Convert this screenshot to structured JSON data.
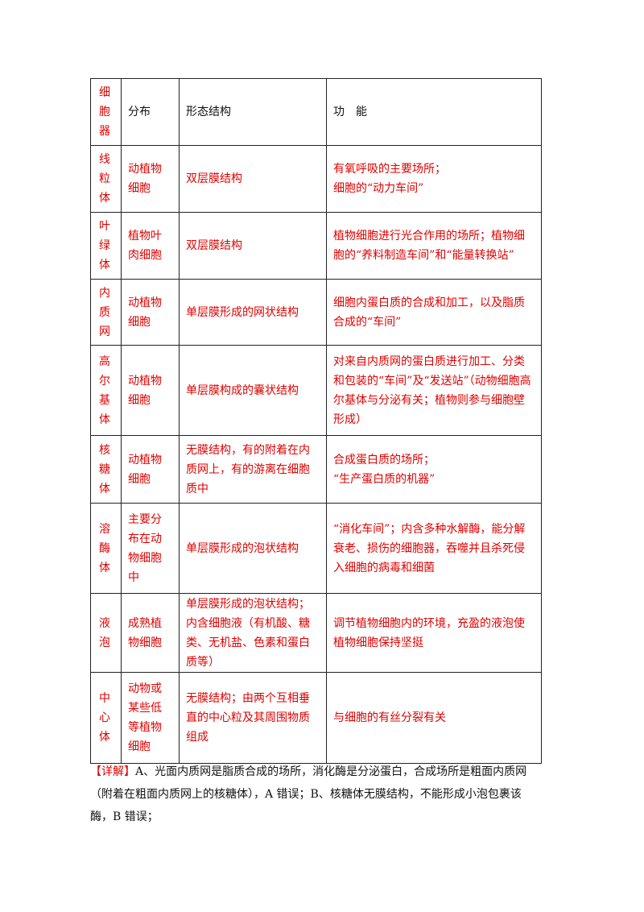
{
  "table": {
    "rows": [
      [
        [
          "细",
          "胞",
          "器"
        ],
        [
          "分布"
        ],
        [
          "形态结构"
        ],
        [
          "功　能"
        ]
      ],
      [
        [
          "线",
          "粒",
          "体"
        ],
        [
          "动植物",
          "细胞"
        ],
        [
          "双层膜结构"
        ],
        [
          "有氧呼吸的主要场所；",
          "细胞的“动力车间”"
        ]
      ],
      [
        [
          "叶",
          "绿",
          "体"
        ],
        [
          "植物叶",
          "肉细胞"
        ],
        [
          "双层膜结构"
        ],
        [
          "植物细胞进行光合作用的场所；植物细",
          "胞的“养料制造车间”和“能量转换站”"
        ]
      ],
      [
        [
          "内",
          "质",
          "网"
        ],
        [
          "动植物",
          "细胞"
        ],
        [
          "单层膜形成的网状结构"
        ],
        [
          "细胞内蛋白质的合成和加工，以及脂质",
          "合成的“车间”"
        ]
      ],
      [
        [
          "高",
          "尔",
          "基",
          "体"
        ],
        [
          "动植物",
          "细胞"
        ],
        [
          "单层膜构成的囊状结构"
        ],
        [
          "对来自内质网的蛋白质进行加工、分类",
          "和包装的“车间”及“发送站”（动物细胞高",
          "尔基体与分泌有关；植物则参与细胞壁",
          "形成）"
        ]
      ],
      [
        [
          "核",
          "糖",
          "体"
        ],
        [
          "动植物",
          "细胞"
        ],
        [
          "无膜结构，有的附着在内",
          "质网上，有的游离在细胞",
          "质中"
        ],
        [
          "合成蛋白质的场所；",
          "“生产蛋白质的机器”"
        ]
      ],
      [
        [
          "溶",
          "酶",
          "体"
        ],
        [
          "主要分",
          "布在动",
          "物细胞",
          "中"
        ],
        [
          "单层膜形成的泡状结构"
        ],
        [
          "“消化车间”；内含多种水解酶，能分解",
          "衰老、损伤的细胞器，吞噬并且杀死侵",
          "入细胞的病毒和细菌"
        ]
      ],
      [
        [
          "液",
          "泡"
        ],
        [
          "成熟植",
          "物细胞"
        ],
        [
          "单层膜形成的泡状结构；",
          "内含细胞液（有机酸、糖",
          "类、无机盐、色素和蛋白",
          "质等）"
        ],
        [
          "调节植物细胞内的环境，充盈的液泡使",
          "植物细胞保持坚挺"
        ]
      ],
      [
        [
          "中",
          "心",
          "体"
        ],
        [
          "动物或",
          "某些低",
          "等植物",
          "细胞"
        ],
        [
          "无膜结构；由两个互相垂",
          "直的中心粒及其周围物质",
          "组成"
        ],
        [
          "与细胞的有丝分裂有关"
        ]
      ]
    ]
  },
  "detail": {
    "label": "【详解】",
    "lines": [
      "A、光面内质网是脂质合成的场所，消化酶是分泌蛋白，合成场所是粗面内质网",
      "（附着在粗面内质网上的核糖体），A 错误；B、核糖体无膜结构，不能形成小泡包裹该",
      "酶，B 错误；"
    ]
  }
}
